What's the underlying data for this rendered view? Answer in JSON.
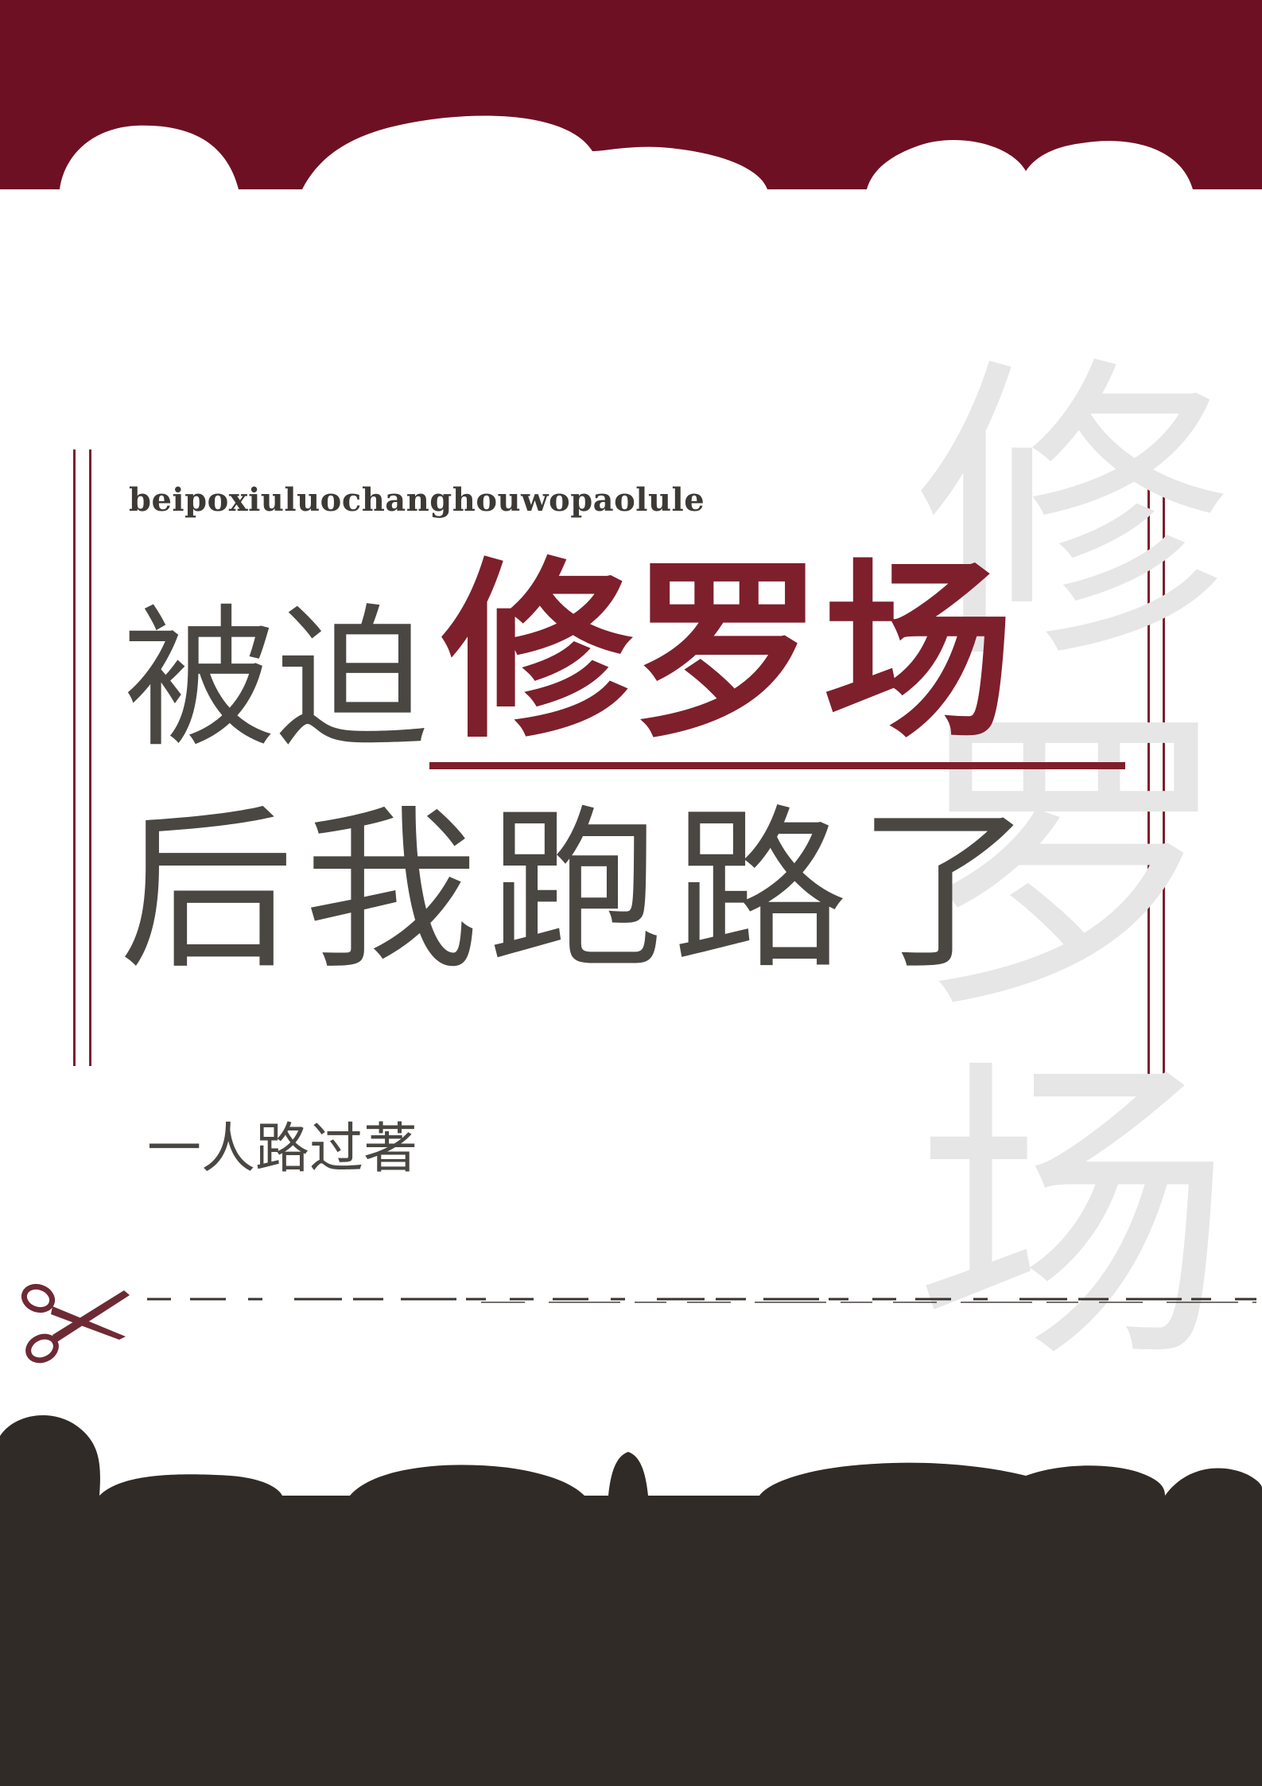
{
  "cover": {
    "pinyin_title": "beipoxiuluochanghouwopaolule",
    "title_part_1": "被迫",
    "title_part_2": "修罗场",
    "title_line_2": "后我跑路了",
    "author_credit": "一人路过著",
    "watermark_chars": [
      "修",
      "罗",
      "场"
    ]
  },
  "colors": {
    "top_band": "#6e1023",
    "bottom_band": "#302b26",
    "accent": "#7e1f2c",
    "title_gray": "#4a4743",
    "watermark": "#e6e6e6"
  },
  "icons": {
    "scissors": "scissors-icon"
  }
}
